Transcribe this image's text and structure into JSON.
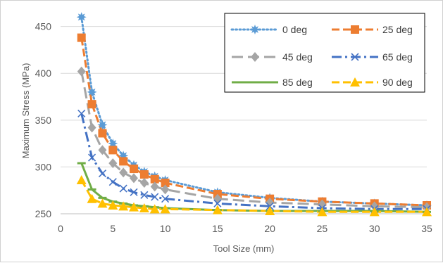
{
  "chart_data": {
    "type": "line",
    "xlabel": "Tool Size (mm)",
    "ylabel": "Maximum Stress (MPa)",
    "xlim": [
      0,
      35
    ],
    "ylim": [
      250,
      470
    ],
    "xticks": [
      0,
      5,
      10,
      15,
      20,
      25,
      30,
      35
    ],
    "yticks": [
      250,
      300,
      350,
      400,
      450
    ],
    "grid": "horizontal",
    "legend_position": "top-right",
    "series": [
      {
        "name": "0 deg",
        "color": "#5B9BD5",
        "dash": "dotted",
        "marker": "star",
        "points": [
          [
            2,
            460
          ],
          [
            3,
            380
          ],
          [
            4,
            345
          ],
          [
            5,
            325
          ],
          [
            6,
            312
          ],
          [
            7,
            302
          ],
          [
            8,
            295
          ],
          [
            9,
            290
          ],
          [
            10,
            286
          ],
          [
            15,
            273
          ],
          [
            20,
            267
          ],
          [
            25,
            263
          ],
          [
            30,
            261
          ],
          [
            35,
            259
          ]
        ]
      },
      {
        "name": "25 deg",
        "color": "#ED7D31",
        "dash": "dashed",
        "marker": "square",
        "points": [
          [
            2,
            438
          ],
          [
            3,
            367
          ],
          [
            4,
            336
          ],
          [
            5,
            318
          ],
          [
            6,
            306
          ],
          [
            7,
            298
          ],
          [
            8,
            292
          ],
          [
            9,
            287
          ],
          [
            10,
            283
          ],
          [
            15,
            271
          ],
          [
            20,
            266
          ],
          [
            25,
            263
          ],
          [
            30,
            261
          ],
          [
            35,
            259
          ]
        ]
      },
      {
        "name": "45 deg",
        "color": "#A5A5A5",
        "dash": "longdash",
        "marker": "diamond",
        "points": [
          [
            2,
            402
          ],
          [
            3,
            342
          ],
          [
            4,
            318
          ],
          [
            5,
            304
          ],
          [
            6,
            294
          ],
          [
            7,
            288
          ],
          [
            8,
            283
          ],
          [
            9,
            279
          ],
          [
            10,
            276
          ],
          [
            15,
            266
          ],
          [
            20,
            262
          ],
          [
            25,
            260
          ],
          [
            30,
            258
          ],
          [
            35,
            257
          ]
        ]
      },
      {
        "name": "65 deg",
        "color": "#4472C4",
        "dash": "dashdot",
        "marker": "x",
        "points": [
          [
            2,
            357
          ],
          [
            3,
            310
          ],
          [
            4,
            293
          ],
          [
            5,
            284
          ],
          [
            6,
            277
          ],
          [
            7,
            273
          ],
          [
            8,
            270
          ],
          [
            9,
            268
          ],
          [
            10,
            266
          ],
          [
            15,
            261
          ],
          [
            20,
            258
          ],
          [
            25,
            256
          ],
          [
            30,
            255
          ],
          [
            35,
            255
          ]
        ]
      },
      {
        "name": "85 deg",
        "color": "#70AD47",
        "dash": "solid",
        "marker": "dash",
        "points": [
          [
            2,
            304
          ],
          [
            3,
            276
          ],
          [
            4,
            267
          ],
          [
            5,
            263
          ],
          [
            6,
            261
          ],
          [
            7,
            259
          ],
          [
            8,
            258
          ],
          [
            9,
            257
          ],
          [
            10,
            256
          ],
          [
            15,
            254
          ],
          [
            20,
            253
          ],
          [
            25,
            253
          ],
          [
            30,
            253
          ],
          [
            35,
            252
          ]
        ]
      },
      {
        "name": "90 deg",
        "color": "#FFC000",
        "dash": "dashed",
        "marker": "triangle",
        "points": [
          [
            2,
            286
          ],
          [
            3,
            266
          ],
          [
            4,
            261
          ],
          [
            5,
            259
          ],
          [
            6,
            258
          ],
          [
            7,
            257
          ],
          [
            8,
            256
          ],
          [
            9,
            255
          ],
          [
            10,
            255
          ],
          [
            15,
            254
          ],
          [
            20,
            253
          ],
          [
            25,
            252
          ],
          [
            30,
            252
          ],
          [
            35,
            252
          ]
        ]
      }
    ]
  }
}
